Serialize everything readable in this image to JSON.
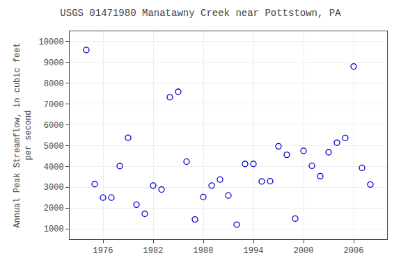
{
  "chart_data": {
    "type": "scatter",
    "title": "USGS 01471980 Manatawny Creek near Pottstown, PA",
    "ylabel": "Annual Peak Streamflow, in cubic feet\nper second",
    "x": [
      1974,
      1975,
      1976,
      1977,
      1978,
      1979,
      1980,
      1981,
      1982,
      1983,
      1984,
      1985,
      1986,
      1987,
      1988,
      1989,
      1990,
      1991,
      1992,
      1993,
      1994,
      1995,
      1996,
      1997,
      1998,
      1999,
      2000,
      2001,
      2002,
      2003,
      2004,
      2005,
      2006,
      2007,
      2008
    ],
    "values": [
      9600,
      3150,
      2500,
      2500,
      4020,
      5380,
      2160,
      1720,
      3080,
      2890,
      7330,
      7590,
      4230,
      1450,
      2530,
      3080,
      3370,
      2600,
      1200,
      4120,
      4120,
      3280,
      3290,
      4970,
      4560,
      1490,
      4750,
      4030,
      3530,
      4680,
      5140,
      5370,
      8810,
      3930,
      3130
    ],
    "color": "#0000cc",
    "marker": "circle-open",
    "xlim": [
      1972,
      2010
    ],
    "ylim": [
      500,
      10500
    ],
    "xticks": [
      1976,
      1982,
      1988,
      1994,
      2000,
      2006
    ],
    "yticks": [
      1000,
      2000,
      3000,
      4000,
      5000,
      6000,
      7000,
      8000,
      9000,
      10000
    ],
    "grid": true
  }
}
